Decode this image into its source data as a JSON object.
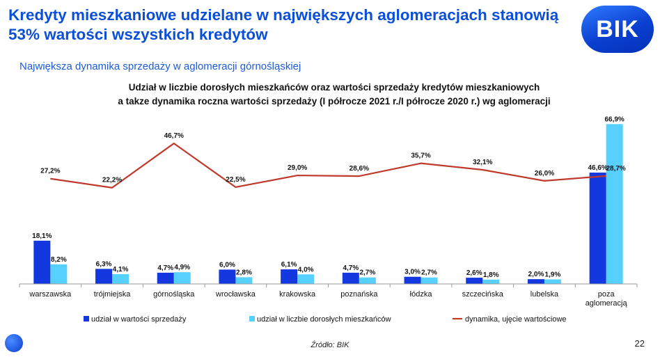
{
  "header": {
    "title": "Kredyty mieszkaniowe udzielane w największych aglomeracjach stanowią 53% wartości wszystkich kredytów",
    "subtitle": "Największa dynamika sprzedaży w aglomeracji górnośląskiej",
    "logo_text": "BIK"
  },
  "footer": {
    "source": "Źródło: BIK",
    "page_number": "22"
  },
  "colors": {
    "sales_bar": "#1438E0",
    "population_bar": "#55D0FF",
    "dynamics_line": "#C0392B",
    "title_blue": "#0B4FD8"
  },
  "chart_data": {
    "type": "bar",
    "title_line1": "Udział w liczbie dorosłych mieszkańców oraz wartości sprzedaży kredytów mieszkaniowych",
    "title_line2": "a takze dynamika roczna wartości sprzedaży (I półrocze 2021 r./I półrocze 2020 r.) wg aglomeracji",
    "categories": [
      "warszawska",
      "trójmiejska",
      "górnośląska",
      "wrocławska",
      "krakowska",
      "poznańska",
      "łódzka",
      "szczecińska",
      "lubelska",
      "poza aglomeracją"
    ],
    "series": [
      {
        "name": "udział w wartości sprzedaży",
        "kind": "bar",
        "values": [
          18.1,
          6.3,
          4.7,
          6.0,
          6.1,
          4.7,
          3.0,
          2.6,
          2.0,
          46.6
        ],
        "labels": [
          "18,1%",
          "6,3%",
          "4,7%",
          "6,0%",
          "6,1%",
          "4,7%",
          "3,0%",
          "2,6%",
          "2,0%",
          "46,6%"
        ]
      },
      {
        "name": "udział w liczbie dorosłych mieszkańców",
        "kind": "bar",
        "values": [
          8.2,
          4.1,
          4.9,
          2.8,
          4.0,
          2.7,
          2.7,
          1.8,
          1.9,
          66.9
        ],
        "labels": [
          "8,2%",
          "4,1%",
          "4,9%",
          "2,8%",
          "4,0%",
          "2,7%",
          "2,7%",
          "1,8%",
          "1,9%",
          "66,9%"
        ]
      },
      {
        "name": "dynamika, ujęcie wartościowe",
        "kind": "line",
        "values": [
          27.2,
          22.2,
          46.7,
          22.5,
          29.0,
          28.6,
          35.7,
          32.1,
          26.0,
          28.7
        ],
        "labels": [
          "27,2%",
          "22,2%",
          "46,7%",
          "22,5%",
          "29,0%",
          "28,6%",
          "35,7%",
          "32,1%",
          "26,0%",
          "28,7%"
        ]
      }
    ],
    "bar_ylim": [
      0,
      67
    ],
    "line_ylim": [
      -31,
      57.5
    ],
    "grid": false,
    "legend_position": "bottom"
  }
}
